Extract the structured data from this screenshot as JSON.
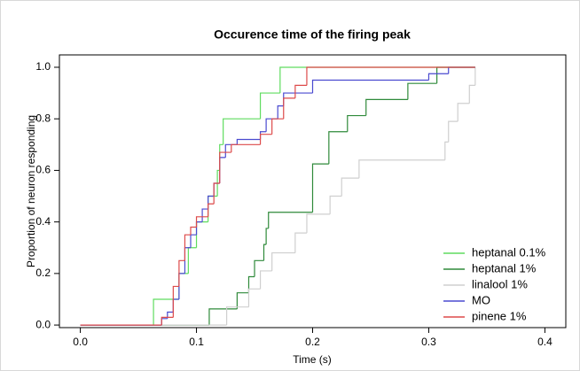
{
  "chart_data": {
    "type": "step",
    "title": "Occurence time of the firing peak",
    "xlabel": "Time (s)",
    "ylabel": "Proportion of neuron responding",
    "xlim": [
      -0.018,
      0.418
    ],
    "ylim": [
      -0.01,
      1.048
    ],
    "xticks": [
      {
        "value": 0,
        "label": "0.0"
      },
      0.1,
      0.2,
      0.3,
      0.4
    ],
    "yticks": [
      {
        "value": 0,
        "label": "0.0"
      },
      0.2,
      0.4,
      0.6,
      0.8,
      {
        "value": 1,
        "label": "1.0"
      }
    ],
    "legend": "bottomright",
    "series": [
      {
        "name": "heptanal 0.1%",
        "color": "#5fdc5f",
        "x": [
          0,
          0.063,
          0.085,
          0.093,
          0.1,
          0.11,
          0.118,
          0.12,
          0.123,
          0.155,
          0.172,
          0.34
        ],
        "values": [
          0,
          0.1,
          0.2,
          0.3,
          0.4,
          0.5,
          0.6,
          0.7,
          0.8,
          0.9,
          1.0,
          1.0
        ]
      },
      {
        "name": "heptanal 1%",
        "color": "#2f8a3a",
        "x": [
          0,
          0.111,
          0.135,
          0.145,
          0.15,
          0.158,
          0.16,
          0.162,
          0.2,
          0.214,
          0.23,
          0.246,
          0.282,
          0.307,
          0.34
        ],
        "values": [
          0,
          0.0625,
          0.125,
          0.1875,
          0.25,
          0.3125,
          0.375,
          0.4375,
          0.625,
          0.75,
          0.8125,
          0.875,
          0.9375,
          1.0,
          1.0
        ]
      },
      {
        "name": "linalool 1%",
        "color": "#cfcfcf",
        "x": [
          0,
          0.126,
          0.145,
          0.155,
          0.165,
          0.185,
          0.195,
          0.215,
          0.225,
          0.24,
          0.314,
          0.317,
          0.325,
          0.335,
          0.34
        ],
        "values": [
          0,
          0.07,
          0.14,
          0.21,
          0.28,
          0.357,
          0.43,
          0.5,
          0.57,
          0.64,
          0.71,
          0.79,
          0.86,
          0.93,
          1.0
        ]
      },
      {
        "name": "MO",
        "color": "#4a4ad0",
        "x": [
          0,
          0.07,
          0.075,
          0.08,
          0.085,
          0.09,
          0.095,
          0.1,
          0.105,
          0.11,
          0.115,
          0.12,
          0.125,
          0.135,
          0.155,
          0.16,
          0.17,
          0.175,
          0.2,
          0.3,
          0.317,
          0.34
        ],
        "values": [
          0,
          0.025,
          0.05,
          0.1,
          0.2,
          0.3,
          0.35,
          0.4,
          0.45,
          0.5,
          0.55,
          0.65,
          0.7,
          0.72,
          0.75,
          0.8,
          0.85,
          0.9,
          0.95,
          0.975,
          1.0,
          1.0
        ]
      },
      {
        "name": "pinene 1%",
        "color": "#dd4a4a",
        "x": [
          0,
          0.07,
          0.08,
          0.085,
          0.09,
          0.095,
          0.1,
          0.11,
          0.115,
          0.12,
          0.13,
          0.155,
          0.165,
          0.175,
          0.185,
          0.195,
          0.34
        ],
        "values": [
          0,
          0.03,
          0.15,
          0.25,
          0.35,
          0.38,
          0.42,
          0.47,
          0.55,
          0.67,
          0.7,
          0.74,
          0.8,
          0.88,
          0.93,
          1.0,
          1.0
        ]
      }
    ]
  }
}
